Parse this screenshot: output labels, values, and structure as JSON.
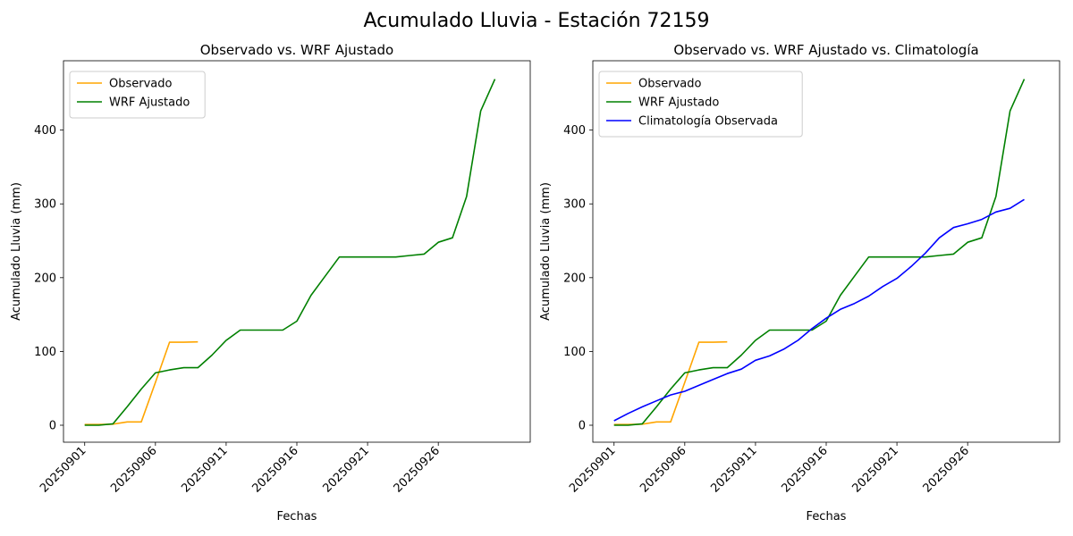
{
  "figure": {
    "suptitle": "Acumulado Lluvia - Estación 72159"
  },
  "chart_data": [
    {
      "type": "line",
      "title": "Observado vs. WRF Ajustado",
      "xlabel": "Fechas",
      "ylabel": "Acumulado Lluvia (mm)",
      "xticks": [
        "20250901",
        "20250906",
        "20250911",
        "20250916",
        "20250921",
        "20250926"
      ],
      "yticks": [
        0,
        100,
        200,
        300,
        400
      ],
      "xlim": [
        -1.5,
        31.5
      ],
      "ylim": [
        -23,
        494
      ],
      "legend_loc": "upper-left",
      "grid": false,
      "series": [
        {
          "name": "Observado",
          "color": "#ffa500",
          "x": [
            0,
            1,
            2,
            3,
            4,
            5,
            6,
            7,
            8
          ],
          "y": [
            1,
            1,
            1.5,
            4.5,
            4.5,
            58,
            112.5,
            112.5,
            113
          ]
        },
        {
          "name": "WRF Ajustado",
          "color": "#008000",
          "x": [
            0,
            1,
            2,
            3,
            4,
            5,
            6,
            7,
            8,
            9,
            10,
            11,
            12,
            13,
            14,
            15,
            16,
            17,
            18,
            19,
            20,
            21,
            22,
            23,
            24,
            25,
            26,
            27,
            28,
            29
          ],
          "y": [
            0,
            0,
            2,
            25,
            49,
            71,
            75,
            78,
            78,
            95,
            115,
            129,
            129,
            129,
            129,
            141,
            176,
            202,
            228,
            228,
            228,
            228,
            228,
            230,
            232,
            248,
            254,
            310,
            426,
            469
          ]
        }
      ]
    },
    {
      "type": "line",
      "title": "Observado vs. WRF Ajustado vs. Climatología",
      "xlabel": "Fechas",
      "ylabel": "Acumulado Lluvia (mm)",
      "xticks": [
        "20250901",
        "20250906",
        "20250911",
        "20250916",
        "20250921",
        "20250926"
      ],
      "yticks": [
        0,
        100,
        200,
        300,
        400
      ],
      "xlim": [
        -1.5,
        31.5
      ],
      "ylim": [
        -23,
        494
      ],
      "legend_loc": "upper-left",
      "grid": false,
      "series": [
        {
          "name": "Observado",
          "color": "#ffa500",
          "x": [
            0,
            1,
            2,
            3,
            4,
            5,
            6,
            7,
            8
          ],
          "y": [
            1,
            1,
            1.5,
            4.5,
            4.5,
            58,
            112.5,
            112.5,
            113
          ]
        },
        {
          "name": "WRF Ajustado",
          "color": "#008000",
          "x": [
            0,
            1,
            2,
            3,
            4,
            5,
            6,
            7,
            8,
            9,
            10,
            11,
            12,
            13,
            14,
            15,
            16,
            17,
            18,
            19,
            20,
            21,
            22,
            23,
            24,
            25,
            26,
            27,
            28,
            29
          ],
          "y": [
            0,
            0,
            2,
            25,
            49,
            71,
            75,
            78,
            78,
            95,
            115,
            129,
            129,
            129,
            129,
            141,
            176,
            202,
            228,
            228,
            228,
            228,
            228,
            230,
            232,
            248,
            254,
            310,
            426,
            469
          ]
        },
        {
          "name": "Climatología Observada",
          "color": "#0000ff",
          "x": [
            0,
            1,
            2,
            3,
            4,
            5,
            6,
            7,
            8,
            9,
            10,
            11,
            12,
            13,
            14,
            15,
            16,
            17,
            18,
            19,
            20,
            21,
            22,
            23,
            24,
            25,
            26,
            27,
            28,
            29
          ],
          "y": [
            6,
            16,
            25,
            33,
            41,
            46,
            54,
            62,
            70,
            76,
            88,
            94,
            103,
            115,
            131,
            145,
            157,
            165,
            175,
            188,
            199,
            215,
            233,
            254,
            268,
            273,
            279,
            289,
            294,
            306
          ]
        }
      ]
    }
  ]
}
